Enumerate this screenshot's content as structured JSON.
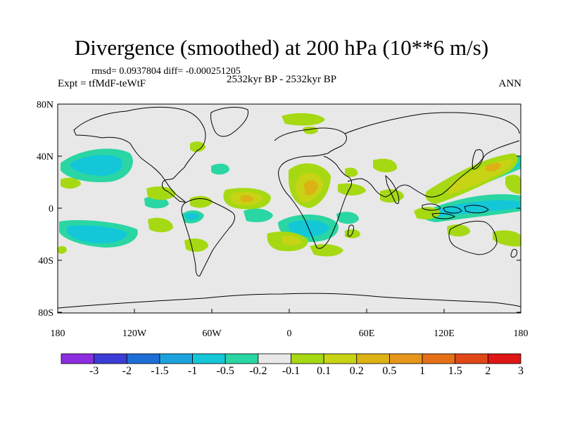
{
  "title": "Divergence (smoothed) at 200 hPa (10**6 m/s)",
  "stats": "rmsd= 0.0937804 diff= -0.000251205",
  "experiment": "Expt = tfMdF-teWtF",
  "period": "2532kyr BP - 2532kyr BP",
  "season": "ANN",
  "axes": {
    "lat_labels": [
      "80N",
      "40N",
      "0",
      "40S",
      "80S"
    ],
    "lon_labels": [
      "180",
      "120W",
      "60W",
      "0",
      "60E",
      "120E",
      "180"
    ]
  },
  "colorbar": {
    "colors": [
      "#8c2de0",
      "#3c3cd6",
      "#1d6fd6",
      "#1ca3de",
      "#13c7d8",
      "#2ad6a3",
      "#e8e8e8",
      "#a6d913",
      "#c7d315",
      "#dcb214",
      "#e6961a",
      "#e67018",
      "#e04818",
      "#e01515"
    ],
    "labels": [
      "-3",
      "-2",
      "-1.5",
      "-1",
      "-0.5",
      "-0.2",
      "-0.1",
      "0.1",
      "0.2",
      "0.5",
      "1",
      "1.5",
      "2",
      "3"
    ]
  },
  "colors": {
    "background": "#e8e8e8",
    "coast": "#000000"
  }
}
